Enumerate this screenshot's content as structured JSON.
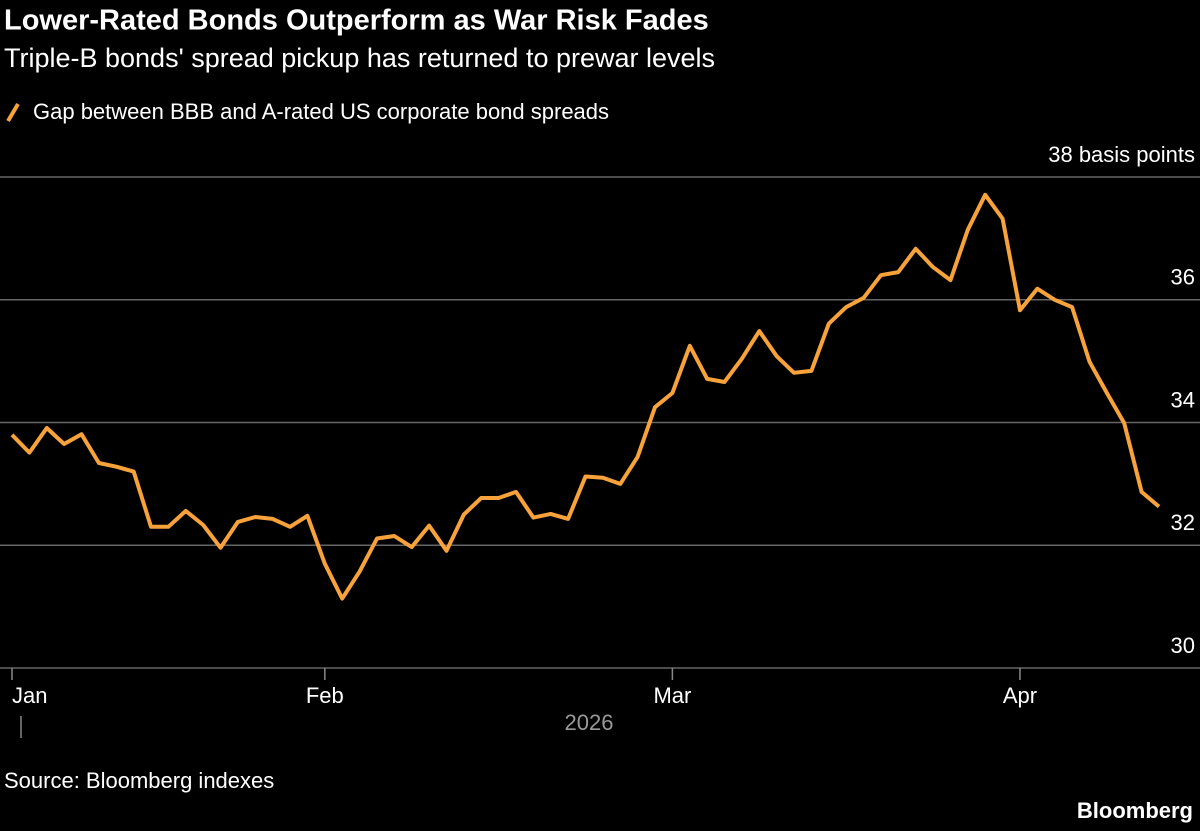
{
  "chart_data": {
    "type": "line",
    "title": "Lower-Rated Bonds Outperform as War Risk Fades",
    "subtitle": "Triple-B bonds' spread pickup has returned to prewar levels",
    "x_axis_label": "2026",
    "source": "Source: Bloomberg indexes",
    "brand": "Bloomberg",
    "categories": [
      "Jan",
      null,
      null,
      null,
      null,
      null,
      null,
      null,
      null,
      null,
      null,
      null,
      null,
      null,
      null,
      null,
      null,
      null,
      "Feb",
      null,
      null,
      null,
      null,
      null,
      null,
      null,
      null,
      null,
      null,
      null,
      null,
      null,
      null,
      null,
      null,
      null,
      null,
      null,
      "Mar",
      null,
      null,
      null,
      null,
      null,
      null,
      null,
      null,
      null,
      null,
      null,
      null,
      null,
      null,
      null,
      null,
      null,
      null,
      null,
      "Apr",
      null,
      null,
      null,
      null,
      null,
      null,
      null,
      null
    ],
    "series": [
      {
        "name": "Gap between BBB and A-rated US corporate bond spreads",
        "color": "#f7a23b",
        "values": [
          33.8,
          33.51,
          33.91,
          33.65,
          33.81,
          33.34,
          33.28,
          33.2,
          32.3,
          32.3,
          32.56,
          32.33,
          31.96,
          32.38,
          32.46,
          32.43,
          32.3,
          32.48,
          31.7,
          31.13,
          31.57,
          32.11,
          32.15,
          31.97,
          32.32,
          31.91,
          32.5,
          32.77,
          32.77,
          32.87,
          32.45,
          32.51,
          32.43,
          33.12,
          33.1,
          33.0,
          33.44,
          34.25,
          34.48,
          35.25,
          34.71,
          34.66,
          35.04,
          35.49,
          35.08,
          34.81,
          34.84,
          35.61,
          35.88,
          36.03,
          36.4,
          36.45,
          36.83,
          36.53,
          36.32,
          37.14,
          37.71,
          37.32,
          35.83,
          36.18,
          36.0,
          35.88,
          34.99,
          34.48,
          33.99,
          32.87,
          32.63
        ]
      }
    ],
    "ylim": [
      30,
      38
    ],
    "yticks": [
      30,
      32,
      34,
      36,
      {
        "value": 38,
        "label": "38 basis points"
      }
    ],
    "grid": true,
    "background": "#000000"
  }
}
